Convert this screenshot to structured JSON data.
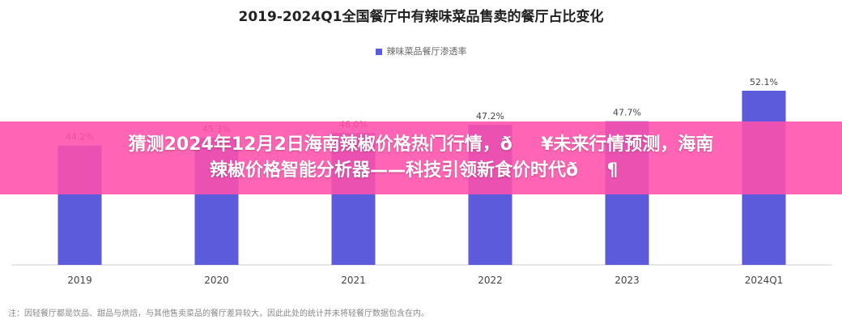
{
  "chart_data": {
    "type": "bar",
    "title": "2019-2024Q1全国餐厅中有辣味菜品售卖的餐厅占比变化",
    "categories": [
      "2019",
      "2020",
      "2021",
      "2022",
      "2023",
      "2024Q1"
    ],
    "series": [
      {
        "name": "辣味菜品餐厅渗透率",
        "values": [
          44.2,
          45.3,
          46.0,
          47.2,
          47.7,
          52.1
        ],
        "color": "#5b5bdc"
      }
    ],
    "data_labels": [
      "44.2%",
      "45.3%",
      "46.0%",
      "47.2%",
      "47.7%",
      "52.1%"
    ],
    "ylim": [
      27,
      54
    ],
    "grid": false,
    "legend": "top-center"
  },
  "footnote": "注：因轻餐厅都是饮品、甜品与烘焙，与其他售卖菜品的餐厅差异较大，因此此处的统计并未将轻餐厅数据包含在内。",
  "banner": {
    "line1": "猜测2024年12月2日海南辣椒价格热门行情，ð¥未来行情预测，海南",
    "line2": "辣椒价格智能分析器——科技引领新食价时代ð¶",
    "color": "#ff50aa"
  }
}
